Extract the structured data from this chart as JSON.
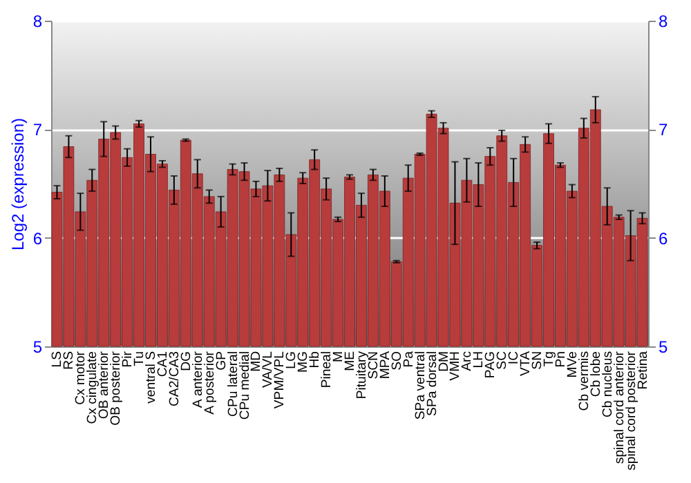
{
  "chart_data": {
    "type": "bar",
    "ylabel": "Log2 (expression)",
    "categories": [
      "LS",
      "RS",
      "Cx motor",
      "Cx cingulate",
      "OB anterior",
      "OB posterior",
      "Pir",
      "Tu",
      "ventral S",
      "CA1",
      "CA2/CA3",
      "DG",
      "A anterior",
      "A posterior",
      "GP",
      "CPu lateral",
      "CPu medial",
      "MD",
      "VA/VL",
      "VPM/VPL",
      "LG",
      "MG",
      "Hb",
      "Pineal",
      "M",
      "ME",
      "Pituitary",
      "SCN",
      "MPA",
      "SO",
      "Pa",
      "SPa ventral",
      "SPa dorsal",
      "DM",
      "VMH",
      "Arc",
      "LH",
      "PAG",
      "SC",
      "IC",
      "VTA",
      "SN",
      "Tg",
      "Pn",
      "MVe",
      "Cb vermis",
      "Cb lobe",
      "Cb nucleus",
      "spinal cord anterior",
      "spinal cord posterior",
      "Retina"
    ],
    "values": [
      6.42,
      6.84,
      6.24,
      6.53,
      6.91,
      6.97,
      6.74,
      7.05,
      6.77,
      6.68,
      6.44,
      6.9,
      6.59,
      6.38,
      6.24,
      6.63,
      6.61,
      6.45,
      6.48,
      6.58,
      6.03,
      6.55,
      6.72,
      6.45,
      6.17,
      6.56,
      6.3,
      6.58,
      6.43,
      5.78,
      6.55,
      6.77,
      7.14,
      7.01,
      6.32,
      6.53,
      6.49,
      6.75,
      6.94,
      6.51,
      6.86,
      5.93,
      6.96,
      6.67,
      6.43,
      7.01,
      7.18,
      6.29,
      6.19,
      6.02,
      6.18
    ],
    "errors": [
      0.06,
      0.1,
      0.17,
      0.1,
      0.16,
      0.06,
      0.08,
      0.03,
      0.16,
      0.03,
      0.13,
      0.01,
      0.13,
      0.06,
      0.14,
      0.05,
      0.08,
      0.07,
      0.14,
      0.06,
      0.2,
      0.05,
      0.09,
      0.1,
      0.02,
      0.02,
      0.11,
      0.05,
      0.14,
      0.01,
      0.12,
      0.01,
      0.03,
      0.05,
      0.38,
      0.2,
      0.2,
      0.08,
      0.05,
      0.22,
      0.07,
      0.03,
      0.09,
      0.02,
      0.06,
      0.09,
      0.12,
      0.17,
      0.02,
      0.23,
      0.05
    ],
    "color": "#b83c3c",
    "ylim": [
      5,
      8
    ],
    "yticks": [
      5,
      6,
      7,
      8
    ],
    "y2lim": [
      5,
      8
    ],
    "y2ticks": [
      5,
      6,
      7,
      8
    ],
    "grid": "y"
  }
}
